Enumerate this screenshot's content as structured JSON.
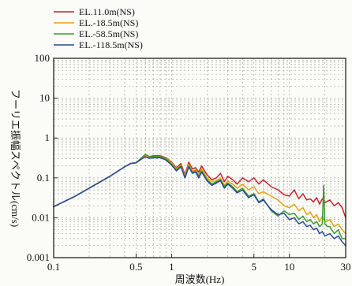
{
  "chart_data": {
    "type": "line",
    "title": "",
    "xlabel": "周波数(Hz)",
    "ylabel": "フーリエ振幅スペクトル(cm/s)",
    "x_scale": "log",
    "y_scale": "log",
    "xlim": [
      0.1,
      30
    ],
    "ylim": [
      0.001,
      100
    ],
    "grid": true,
    "legend_position": "top-left",
    "x_ticks": [
      {
        "value": 0.1,
        "label": "0.1"
      },
      {
        "value": 0.5,
        "label": "0.5"
      },
      {
        "value": 1,
        "label": "1"
      },
      {
        "value": 5,
        "label": "5"
      },
      {
        "value": 10,
        "label": "10"
      },
      {
        "value": 30,
        "label": "30"
      }
    ],
    "y_ticks": [
      {
        "value": 0.001,
        "label": "0.001"
      },
      {
        "value": 0.01,
        "label": "0.01"
      },
      {
        "value": 0.1,
        "label": "0.1"
      },
      {
        "value": 1,
        "label": "1"
      },
      {
        "value": 10,
        "label": "10"
      },
      {
        "value": 100,
        "label": "100"
      }
    ],
    "series": [
      {
        "name": "EL.11.0m(NS)",
        "color": "#c0262b",
        "x": [
          0.1,
          0.15,
          0.2,
          0.3,
          0.4,
          0.45,
          0.5,
          0.55,
          0.6,
          0.65,
          0.7,
          0.8,
          0.9,
          1.0,
          1.1,
          1.2,
          1.3,
          1.4,
          1.5,
          1.6,
          1.7,
          1.8,
          2.0,
          2.2,
          2.4,
          2.6,
          2.8,
          3.0,
          3.3,
          3.6,
          4.0,
          4.5,
          5.0,
          5.5,
          6.0,
          7.0,
          8.0,
          9.0,
          10,
          11,
          12,
          13,
          14,
          15,
          16,
          17,
          18,
          19,
          20,
          22,
          24,
          26,
          28,
          30
        ],
        "y": [
          0.019,
          0.034,
          0.055,
          0.11,
          0.19,
          0.23,
          0.24,
          0.3,
          0.38,
          0.34,
          0.36,
          0.36,
          0.32,
          0.25,
          0.18,
          0.23,
          0.12,
          0.25,
          0.17,
          0.18,
          0.14,
          0.2,
          0.12,
          0.09,
          0.1,
          0.13,
          0.08,
          0.11,
          0.09,
          0.07,
          0.1,
          0.08,
          0.1,
          0.07,
          0.09,
          0.06,
          0.05,
          0.038,
          0.035,
          0.05,
          0.03,
          0.04,
          0.028,
          0.03,
          0.025,
          0.032,
          0.022,
          0.03,
          0.024,
          0.028,
          0.02,
          0.024,
          0.018,
          0.01
        ]
      },
      {
        "name": "EL.-18.5m(NS)",
        "color": "#e3a317",
        "x": [
          0.1,
          0.15,
          0.2,
          0.3,
          0.4,
          0.45,
          0.5,
          0.55,
          0.6,
          0.65,
          0.7,
          0.8,
          0.9,
          1.0,
          1.1,
          1.2,
          1.3,
          1.4,
          1.5,
          1.6,
          1.7,
          1.8,
          2.0,
          2.2,
          2.4,
          2.6,
          2.8,
          3.0,
          3.3,
          3.6,
          4.0,
          4.5,
          5.0,
          5.5,
          6.0,
          7.0,
          8.0,
          9.0,
          10,
          11,
          12,
          13,
          14,
          15,
          16,
          17,
          18,
          19,
          20,
          22,
          24,
          26,
          28,
          30
        ],
        "y": [
          0.019,
          0.034,
          0.055,
          0.11,
          0.19,
          0.23,
          0.24,
          0.3,
          0.36,
          0.33,
          0.34,
          0.34,
          0.31,
          0.24,
          0.17,
          0.21,
          0.11,
          0.22,
          0.15,
          0.16,
          0.12,
          0.17,
          0.1,
          0.08,
          0.085,
          0.1,
          0.065,
          0.085,
          0.07,
          0.055,
          0.07,
          0.05,
          0.06,
          0.04,
          0.045,
          0.035,
          0.028,
          0.02,
          0.018,
          0.022,
          0.015,
          0.018,
          0.012,
          0.014,
          0.01,
          0.012,
          0.008,
          0.011,
          0.008,
          0.009,
          0.006,
          0.007,
          0.005,
          0.004
        ]
      },
      {
        "name": "EL.-58.5m(NS)",
        "color": "#3d9b2e",
        "x": [
          0.1,
          0.15,
          0.2,
          0.3,
          0.4,
          0.45,
          0.5,
          0.55,
          0.6,
          0.65,
          0.7,
          0.8,
          0.9,
          1.0,
          1.1,
          1.2,
          1.3,
          1.4,
          1.5,
          1.6,
          1.7,
          1.8,
          2.0,
          2.2,
          2.4,
          2.6,
          2.8,
          3.0,
          3.3,
          3.6,
          4.0,
          4.5,
          5.0,
          5.5,
          6.0,
          7.0,
          8.0,
          9.0,
          10,
          11,
          12,
          13,
          14,
          15,
          16,
          17,
          18,
          19,
          19.5,
          20,
          21,
          22,
          24,
          26,
          28,
          30
        ],
        "y": [
          0.019,
          0.034,
          0.055,
          0.11,
          0.19,
          0.23,
          0.24,
          0.31,
          0.39,
          0.34,
          0.34,
          0.34,
          0.3,
          0.22,
          0.16,
          0.2,
          0.1,
          0.2,
          0.14,
          0.15,
          0.11,
          0.15,
          0.09,
          0.07,
          0.08,
          0.09,
          0.06,
          0.075,
          0.06,
          0.045,
          0.055,
          0.035,
          0.04,
          0.025,
          0.03,
          0.015,
          0.011,
          0.015,
          0.012,
          0.013,
          0.009,
          0.011,
          0.008,
          0.009,
          0.007,
          0.008,
          0.006,
          0.007,
          0.065,
          0.007,
          0.006,
          0.006,
          0.004,
          0.005,
          0.003,
          0.003
        ]
      },
      {
        "name": "EL.-118.5m(NS)",
        "color": "#27489a",
        "x": [
          0.1,
          0.15,
          0.2,
          0.3,
          0.4,
          0.45,
          0.5,
          0.55,
          0.6,
          0.65,
          0.7,
          0.8,
          0.9,
          1.0,
          1.1,
          1.2,
          1.3,
          1.4,
          1.5,
          1.6,
          1.7,
          1.8,
          2.0,
          2.2,
          2.4,
          2.6,
          2.8,
          3.0,
          3.3,
          3.6,
          4.0,
          4.5,
          5.0,
          5.5,
          6.0,
          7.0,
          8.0,
          9.0,
          10,
          11,
          12,
          13,
          14,
          15,
          16,
          17,
          18,
          19,
          20,
          22,
          24,
          26,
          28,
          30
        ],
        "y": [
          0.019,
          0.034,
          0.055,
          0.11,
          0.19,
          0.23,
          0.24,
          0.29,
          0.34,
          0.31,
          0.32,
          0.32,
          0.28,
          0.21,
          0.15,
          0.19,
          0.1,
          0.19,
          0.13,
          0.14,
          0.1,
          0.14,
          0.085,
          0.065,
          0.075,
          0.085,
          0.055,
          0.07,
          0.055,
          0.042,
          0.05,
          0.032,
          0.038,
          0.024,
          0.028,
          0.016,
          0.012,
          0.013,
          0.009,
          0.01,
          0.007,
          0.008,
          0.006,
          0.0065,
          0.005,
          0.0055,
          0.004,
          0.0045,
          0.0035,
          0.004,
          0.003,
          0.0035,
          0.0025,
          0.002
        ]
      }
    ]
  }
}
